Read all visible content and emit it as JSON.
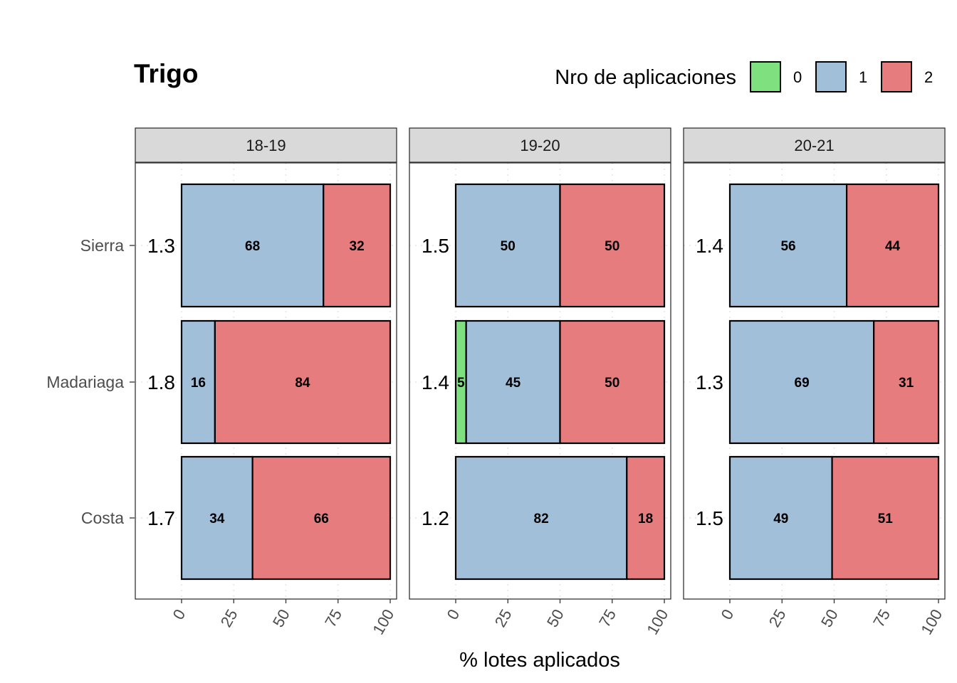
{
  "chart_data": {
    "type": "bar",
    "orientation": "horizontal",
    "stacked": true,
    "title": "Trigo",
    "xlabel": "% lotes aplicados",
    "ylabel": "",
    "xlim": [
      0,
      100
    ],
    "xticks": [
      "0",
      "25",
      "50",
      "75",
      "100"
    ],
    "legend": {
      "title": "Nro de aplicaciones",
      "placement": "top-right",
      "entries": [
        {
          "key": "0",
          "label": "0",
          "color": "#7fe07f"
        },
        {
          "key": "1",
          "label": "1",
          "color": "#a2bfda"
        },
        {
          "key": "2",
          "label": "2",
          "color": "#e67c7e"
        }
      ]
    },
    "categories": [
      "Sierra",
      "Madariaga",
      "Costa"
    ],
    "grid": "dotted",
    "panels": [
      {
        "label": "18-19",
        "rows": [
          {
            "category": "Sierra",
            "mean": "1.3",
            "segments": [
              {
                "key": "1",
                "value": 68,
                "label": "68"
              },
              {
                "key": "2",
                "value": 32,
                "label": "32"
              }
            ]
          },
          {
            "category": "Madariaga",
            "mean": "1.8",
            "segments": [
              {
                "key": "1",
                "value": 16,
                "label": "16"
              },
              {
                "key": "2",
                "value": 84,
                "label": "84"
              }
            ]
          },
          {
            "category": "Costa",
            "mean": "1.7",
            "segments": [
              {
                "key": "1",
                "value": 34,
                "label": "34"
              },
              {
                "key": "2",
                "value": 66,
                "label": "66"
              }
            ]
          }
        ]
      },
      {
        "label": "19-20",
        "rows": [
          {
            "category": "Sierra",
            "mean": "1.5",
            "segments": [
              {
                "key": "1",
                "value": 50,
                "label": "50"
              },
              {
                "key": "2",
                "value": 50,
                "label": "50"
              }
            ]
          },
          {
            "category": "Madariaga",
            "mean": "1.4",
            "segments": [
              {
                "key": "0",
                "value": 5,
                "label": "5"
              },
              {
                "key": "1",
                "value": 45,
                "label": "45"
              },
              {
                "key": "2",
                "value": 50,
                "label": "50"
              }
            ]
          },
          {
            "category": "Costa",
            "mean": "1.2",
            "segments": [
              {
                "key": "1",
                "value": 82,
                "label": "82"
              },
              {
                "key": "2",
                "value": 18,
                "label": "18"
              }
            ]
          }
        ]
      },
      {
        "label": "20-21",
        "rows": [
          {
            "category": "Sierra",
            "mean": "1.4",
            "segments": [
              {
                "key": "1",
                "value": 56,
                "label": "56"
              },
              {
                "key": "2",
                "value": 44,
                "label": "44"
              }
            ]
          },
          {
            "category": "Madariaga",
            "mean": "1.3",
            "segments": [
              {
                "key": "1",
                "value": 69,
                "label": "69"
              },
              {
                "key": "2",
                "value": 31,
                "label": "31"
              }
            ]
          },
          {
            "category": "Costa",
            "mean": "1.5",
            "segments": [
              {
                "key": "1",
                "value": 49,
                "label": "49"
              },
              {
                "key": "2",
                "value": 51,
                "label": "51"
              }
            ]
          }
        ]
      }
    ]
  }
}
